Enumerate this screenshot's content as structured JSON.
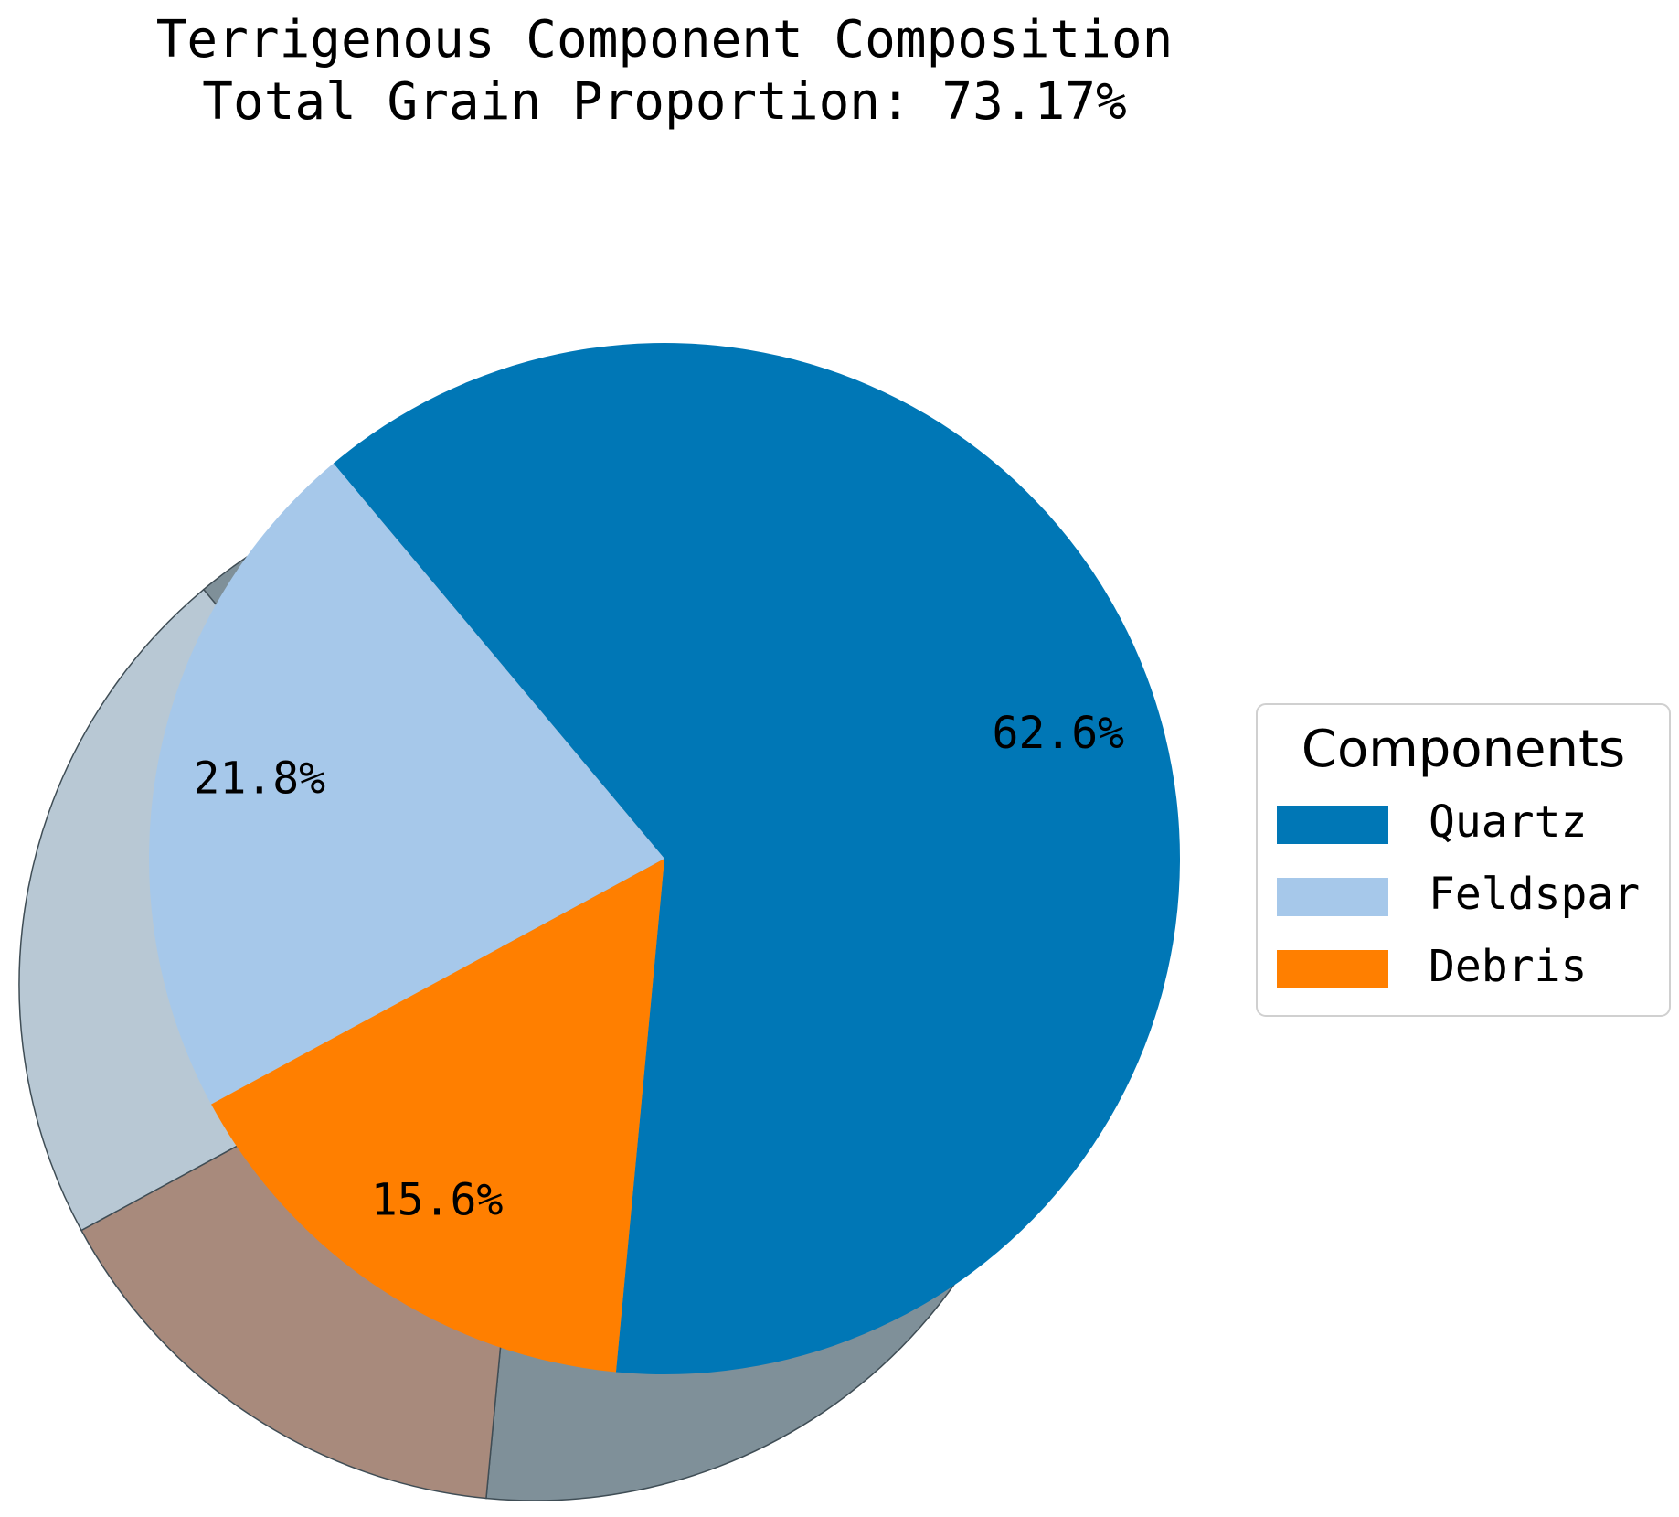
{
  "chart_data": {
    "type": "pie",
    "title": "Terrigenous Component Composition",
    "subtitle": "Total Grain Proportion: 73.17%",
    "categories": [
      "Quartz",
      "Feldspar",
      "Debris"
    ],
    "values": [
      62.6,
      21.8,
      15.6
    ],
    "labels": [
      "62.6%",
      "21.8%",
      "15.6%"
    ],
    "colors": [
      "#0077b6",
      "#a6c8ea",
      "#ff7f00"
    ],
    "shadow_colors": [
      "#7f9099",
      "#b8c8d4",
      "#a88a7c"
    ],
    "legend": {
      "title": "Components",
      "placement": "right"
    }
  }
}
